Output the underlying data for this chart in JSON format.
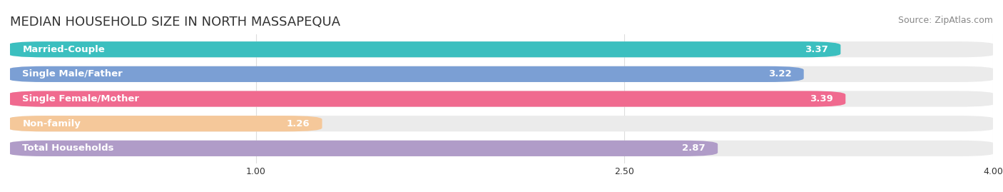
{
  "title": "MEDIAN HOUSEHOLD SIZE IN NORTH MASSAPEQUA",
  "source": "Source: ZipAtlas.com",
  "categories": [
    "Married-Couple",
    "Single Male/Father",
    "Single Female/Mother",
    "Non-family",
    "Total Households"
  ],
  "values": [
    3.37,
    3.22,
    3.39,
    1.26,
    2.87
  ],
  "bar_colors": [
    "#3bbfbf",
    "#7b9fd4",
    "#f06a8f",
    "#f5c89a",
    "#b09cc8"
  ],
  "bar_bg_color": "#f0f0f0",
  "xlim": [
    0,
    4.0
  ],
  "xticks": [
    1.0,
    2.5,
    4.0
  ],
  "xtick_labels": [
    "1.00",
    "2.50",
    "4.00"
  ],
  "title_fontsize": 13,
  "label_fontsize": 9.5,
  "value_fontsize": 9.5,
  "source_fontsize": 9,
  "bar_height": 0.62,
  "background_color": "#ffffff",
  "grid_color": "#dddddd",
  "text_color": "#333333"
}
